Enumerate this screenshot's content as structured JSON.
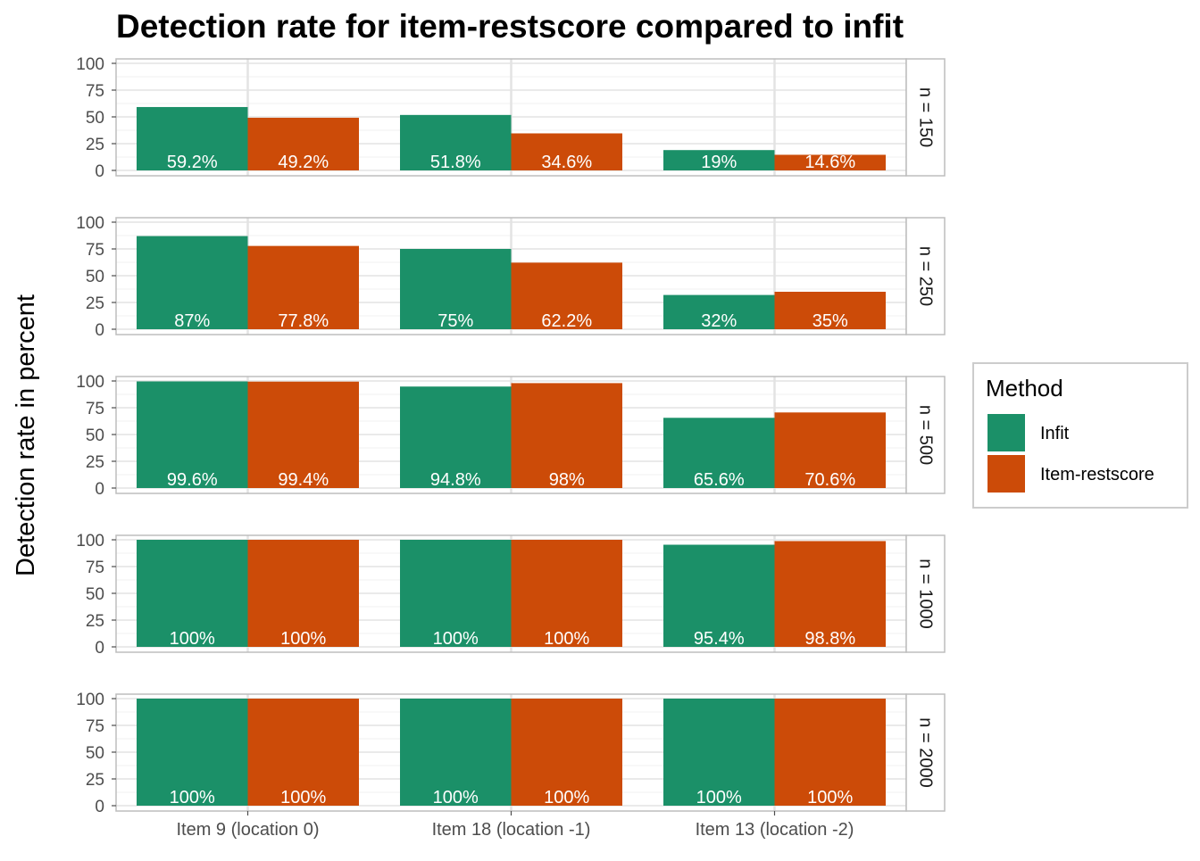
{
  "chart_data": {
    "type": "bar",
    "title": "Detection rate for item-restscore compared to infit",
    "ylabel": "Detection rate in percent",
    "xlabel": "",
    "ylim": [
      0,
      100
    ],
    "yticks": [
      "0",
      "25",
      "50",
      "75",
      "100"
    ],
    "categories": [
      "Item 9 (location 0)",
      "Item 18 (location -1)",
      "Item 13 (location -2)"
    ],
    "legend": {
      "title": "Method",
      "placement": "right",
      "entries": [
        "Infit",
        "Item-restscore"
      ]
    },
    "colors": {
      "Infit": "#1b9068",
      "Item-restscore": "#cc4b08"
    },
    "grid": true,
    "panels": [
      {
        "strip": "n = 150",
        "series": [
          {
            "name": "Infit",
            "values": [
              59.2,
              51.8,
              19
            ],
            "labels": [
              "59.2%",
              "51.8%",
              "19%"
            ]
          },
          {
            "name": "Item-restscore",
            "values": [
              49.2,
              34.6,
              14.6
            ],
            "labels": [
              "49.2%",
              "34.6%",
              "14.6%"
            ]
          }
        ]
      },
      {
        "strip": "n = 250",
        "series": [
          {
            "name": "Infit",
            "values": [
              87,
              75,
              32
            ],
            "labels": [
              "87%",
              "75%",
              "32%"
            ]
          },
          {
            "name": "Item-restscore",
            "values": [
              77.8,
              62.2,
              35
            ],
            "labels": [
              "77.8%",
              "62.2%",
              "35%"
            ]
          }
        ]
      },
      {
        "strip": "n = 500",
        "series": [
          {
            "name": "Infit",
            "values": [
              99.6,
              94.8,
              65.6
            ],
            "labels": [
              "99.6%",
              "94.8%",
              "65.6%"
            ]
          },
          {
            "name": "Item-restscore",
            "values": [
              99.4,
              98,
              70.6
            ],
            "labels": [
              "99.4%",
              "98%",
              "70.6%"
            ]
          }
        ]
      },
      {
        "strip": "n = 1000",
        "series": [
          {
            "name": "Infit",
            "values": [
              100,
              100,
              95.4
            ],
            "labels": [
              "100%",
              "100%",
              "95.4%"
            ]
          },
          {
            "name": "Item-restscore",
            "values": [
              100,
              100,
              98.8
            ],
            "labels": [
              "100%",
              "100%",
              "98.8%"
            ]
          }
        ]
      },
      {
        "strip": "n = 2000",
        "series": [
          {
            "name": "Infit",
            "values": [
              100,
              100,
              100
            ],
            "labels": [
              "100%",
              "100%",
              "100%"
            ]
          },
          {
            "name": "Item-restscore",
            "values": [
              100,
              100,
              100
            ],
            "labels": [
              "100%",
              "100%",
              "100%"
            ]
          }
        ]
      }
    ]
  }
}
